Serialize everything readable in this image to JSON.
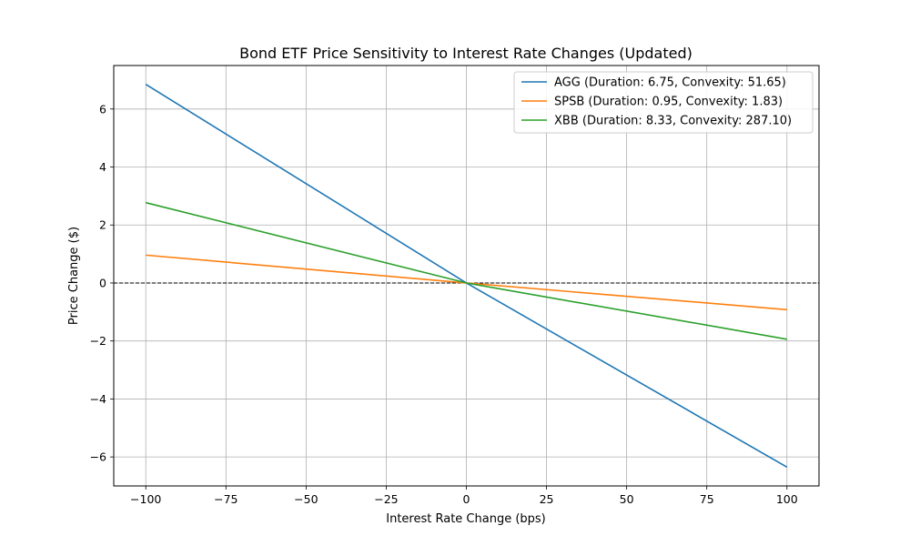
{
  "chart_data": {
    "type": "line",
    "title": "Bond ETF Price Sensitivity to Interest Rate Changes (Updated)",
    "xlabel": "Interest Rate Change (bps)",
    "ylabel": "Price Change ($)",
    "xlim": [
      -110,
      110
    ],
    "ylim": [
      -7.0,
      7.5
    ],
    "xticks": [
      -100,
      -75,
      -50,
      -25,
      0,
      25,
      50,
      75,
      100
    ],
    "xtick_labels": [
      "−100",
      "−75",
      "−50",
      "−25",
      "0",
      "25",
      "50",
      "75",
      "100"
    ],
    "yticks": [
      -6,
      -4,
      -2,
      0,
      2,
      4,
      6
    ],
    "ytick_labels": [
      "−6",
      "−4",
      "−2",
      "0",
      "2",
      "4",
      "6"
    ],
    "grid": true,
    "legend_position": "top-right",
    "reference_line": {
      "y": 0,
      "style": "dashed",
      "color": "#000000"
    },
    "series": [
      {
        "name": "AGG (Duration: 6.75, Convexity: 51.65)",
        "color": "#1f77b4",
        "x": [
          -100,
          0,
          100
        ],
        "y": [
          6.85,
          0,
          -6.35
        ]
      },
      {
        "name": "SPSB (Duration: 0.95, Convexity: 1.83)",
        "color": "#ff7f0e",
        "x": [
          -100,
          0,
          100
        ],
        "y": [
          0.96,
          0,
          -0.92
        ]
      },
      {
        "name": "XBB (Duration: 8.33, Convexity: 287.10)",
        "color": "#2ca02c",
        "x": [
          -100,
          0,
          100
        ],
        "y": [
          2.77,
          0,
          -1.94
        ]
      }
    ]
  }
}
